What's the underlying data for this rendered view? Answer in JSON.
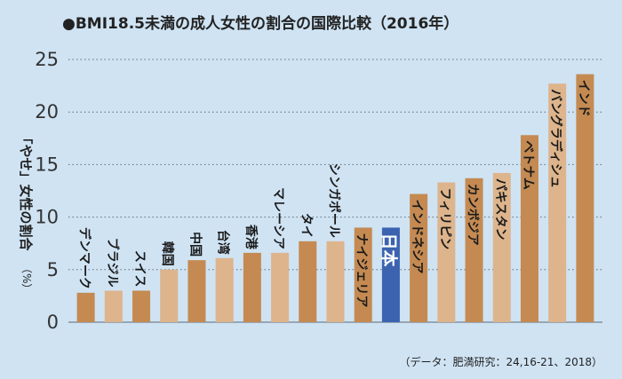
{
  "chart_data": {
    "type": "bar",
    "title": "●BMI18.5未満の成人女性の割合の国際比較（2016年）",
    "ylabel": "「やせ」女性の割合",
    "yunit": "（%）",
    "ylim": [
      0,
      25
    ],
    "yticks": [
      0,
      5,
      10,
      15,
      20,
      25
    ],
    "grid": true,
    "source": "（データ：肥満研究：24,16-21、2018）",
    "colors": {
      "dark": "#c48a52",
      "light": "#ddb48c",
      "highlight": "#3b63b0",
      "background": "#cfe3f3",
      "grid": "#5f6a76"
    },
    "categories": [
      "デンマーク",
      "ブラジル",
      "スイス",
      "韓国",
      "中国",
      "台湾",
      "香港",
      "マレーシア",
      "タイ",
      "シンガポール",
      "ナイジェリア",
      "日本",
      "インドネシア",
      "フィリピン",
      "カンボジア",
      "パキスタン",
      "ベトナム",
      "バングラディシュ",
      "インド"
    ],
    "values": [
      2.8,
      3.0,
      3.0,
      5.0,
      5.9,
      6.1,
      6.6,
      6.6,
      7.7,
      7.7,
      9.0,
      9.0,
      12.2,
      13.3,
      13.7,
      14.2,
      17.8,
      22.7,
      23.6
    ],
    "bar_colors": [
      "dark",
      "light",
      "dark",
      "light",
      "dark",
      "light",
      "dark",
      "light",
      "dark",
      "light",
      "dark",
      "highlight",
      "dark",
      "light",
      "dark",
      "light",
      "dark",
      "light",
      "dark"
    ]
  }
}
